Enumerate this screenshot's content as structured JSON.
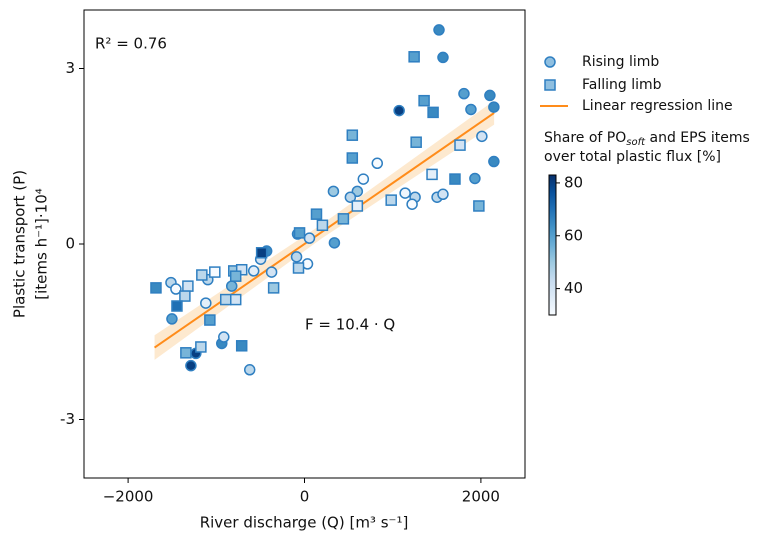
{
  "chart_data": {
    "type": "scatter",
    "xlabel": "River discharge (Q) [m³ s⁻¹]",
    "ylabel": [
      "Plastic transport (P)",
      "[items h⁻¹]·10⁴"
    ],
    "annotations": [
      "R² = 0.76",
      "F = 10.4 · Q"
    ],
    "xlim": [
      -2500,
      2500
    ],
    "ylim": [
      -4,
      4
    ],
    "xticks": [
      {
        "value": -2000,
        "label": "−2000"
      },
      0,
      2000
    ],
    "yticks": [
      3,
      0,
      -3
    ],
    "edge_color": "#2f7fc1",
    "clim": [
      30,
      83
    ],
    "colorbar_ticks": [
      40,
      60,
      80
    ],
    "colorbar_label": {
      "line1": [
        "Share of PO",
        "soft",
        " and EPS items"
      ],
      "line2": "over total plastic flux [%]"
    },
    "series": [
      {
        "name": "Rising limb",
        "marker": "circle",
        "x": [
          1525,
          1570,
          1808,
          2102,
          2147,
          1887,
          1073,
          2011,
          825,
          2147,
          1932,
          667,
          328,
          599,
          520,
          1141,
          1254,
          1503,
          1570,
          1220,
          -79,
          56,
          339,
          34,
          -90,
          -429,
          -497,
          -576,
          -373,
          -621,
          -1514,
          -1458,
          -1503,
          -1119,
          -1096,
          -825,
          -938,
          -915,
          -1232,
          -1288
        ],
        "y": [
          3.66,
          3.19,
          2.57,
          2.54,
          2.34,
          2.3,
          2.28,
          1.84,
          1.38,
          1.41,
          1.12,
          1.11,
          0.9,
          0.9,
          0.8,
          0.87,
          0.8,
          0.8,
          0.85,
          0.68,
          0.17,
          0.1,
          0.02,
          -0.34,
          -0.22,
          -0.12,
          -0.26,
          -0.46,
          -0.48,
          -2.15,
          -0.66,
          -0.77,
          -1.28,
          -1.01,
          -0.61,
          -0.72,
          -1.7,
          -1.59,
          -1.87,
          -2.08
        ],
        "share": [
          65,
          65,
          60,
          65,
          65,
          60,
          80,
          40,
          30,
          65,
          60,
          30,
          50,
          50,
          45,
          32,
          45,
          45,
          40,
          30,
          60,
          40,
          60,
          30,
          45,
          65,
          40,
          35,
          40,
          45,
          45,
          30,
          60,
          35,
          45,
          55,
          65,
          40,
          80,
          80
        ]
      },
      {
        "name": "Falling limb",
        "marker": "square",
        "x": [
          1243,
          1356,
          1458,
          542,
          1266,
          1706,
          1446,
          1763,
          542,
          1977,
          983,
          599,
          136,
          203,
          441,
          -56,
          -68,
          -486,
          -350,
          -1684,
          -1322,
          -1356,
          -1446,
          -1164,
          -1017,
          -802,
          -712,
          -780,
          -780,
          -893,
          -1073,
          -712,
          -1175,
          -1345
        ],
        "y": [
          3.2,
          2.45,
          2.25,
          1.86,
          1.74,
          1.11,
          1.19,
          1.69,
          1.47,
          0.65,
          0.75,
          0.65,
          0.51,
          0.32,
          0.43,
          0.19,
          -0.41,
          -0.15,
          -0.75,
          -0.75,
          -0.72,
          -0.89,
          -1.06,
          -0.53,
          -0.48,
          -0.46,
          -0.44,
          -0.55,
          -0.95,
          -0.95,
          -1.3,
          -1.74,
          -1.76,
          -1.86
        ],
        "share": [
          60,
          60,
          65,
          55,
          55,
          65,
          35,
          40,
          60,
          55,
          45,
          35,
          60,
          45,
          55,
          60,
          45,
          80,
          50,
          65,
          40,
          45,
          70,
          45,
          30,
          50,
          40,
          55,
          40,
          45,
          60,
          65,
          45,
          55
        ]
      }
    ],
    "regression": {
      "name": "Linear regression line",
      "color": "#ff8c1a",
      "x": [
        -1700,
        2150
      ],
      "y": [
        -1.77,
        2.24
      ],
      "band": {
        "x": [
          -1700,
          200,
          2150
        ],
        "lower": [
          -1.98,
          0.1,
          2.04
        ],
        "upper": [
          -1.56,
          0.34,
          2.45
        ],
        "color": "#fde9cf"
      }
    }
  }
}
